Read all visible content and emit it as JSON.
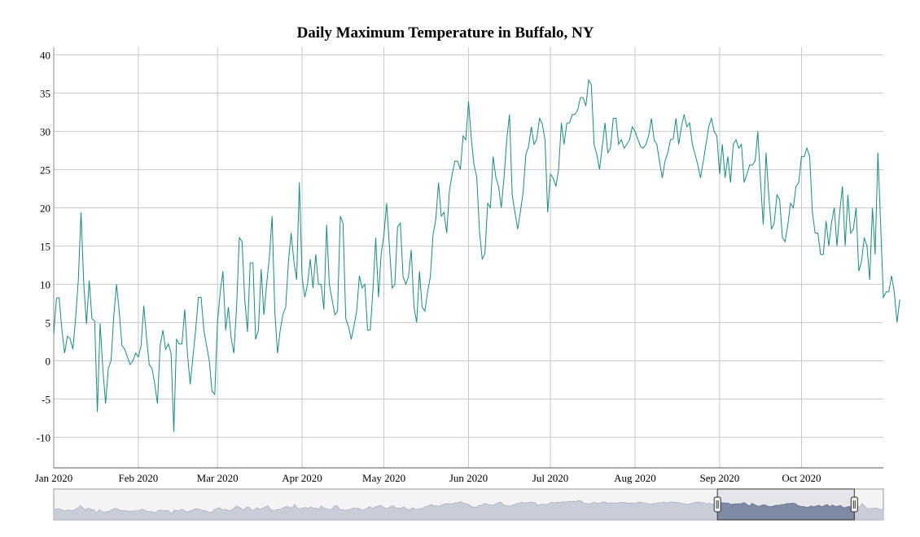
{
  "chart_data": {
    "type": "line",
    "title": "Daily Maximum Temperature in Buffalo, NY",
    "xlabel": "",
    "ylabel": "",
    "ylim": [
      -14,
      41
    ],
    "y_ticks": [
      -10,
      -5,
      0,
      5,
      10,
      15,
      20,
      25,
      30,
      35,
      40
    ],
    "x_ticks": [
      {
        "label": "Jan 2020",
        "day": 0
      },
      {
        "label": "Feb 2020",
        "day": 31
      },
      {
        "label": "Mar 2020",
        "day": 60
      },
      {
        "label": "Apr 2020",
        "day": 91
      },
      {
        "label": "May 2020",
        "day": 121
      },
      {
        "label": "Jun 2020",
        "day": 152
      },
      {
        "label": "Jul 2020",
        "day": 182
      },
      {
        "label": "Aug 2020",
        "day": 213
      },
      {
        "label": "Sep 2020",
        "day": 244
      },
      {
        "label": "Oct 2020",
        "day": 274
      }
    ],
    "x_domain_days": [
      0,
      304
    ],
    "grid": true,
    "legend": "none",
    "line_color": "#1a8a83",
    "series": [
      {
        "values": [
          3.5,
          8.2,
          8.2,
          4.0,
          1.0,
          3.2,
          2.9,
          1.5,
          5.5,
          10.5,
          19.4,
          10.0,
          4.8,
          10.5,
          5.5,
          5.2,
          -6.7,
          4.9,
          -1.0,
          -5.6,
          -1.0,
          0.0,
          5.8,
          10.0,
          6.5,
          2.0,
          1.5,
          0.5,
          -0.5,
          0.0,
          1.0,
          0.5,
          2.0,
          7.2,
          3.0,
          -0.5,
          -1.0,
          -3.0,
          -5.6,
          2.0,
          4.0,
          1.5,
          2.2,
          1.0,
          -9.3,
          2.8,
          2.2,
          2.2,
          6.7,
          1.0,
          -3.1,
          0.5,
          4.0,
          8.3,
          8.3,
          4.0,
          2.0,
          0.0,
          -4.0,
          -4.4,
          5.0,
          9.0,
          11.7,
          4.0,
          7.0,
          3.0,
          1.0,
          7.0,
          16.1,
          15.6,
          8.0,
          3.8,
          12.8,
          12.8,
          2.8,
          4.0,
          12.0,
          6.0,
          10.0,
          13.5,
          18.9,
          6.5,
          1.0,
          4.0,
          6.1,
          7.0,
          13.0,
          16.7,
          13.0,
          10.6,
          23.3,
          11.0,
          8.3,
          10.0,
          13.3,
          9.5,
          13.9,
          10.0,
          10.0,
          6.7,
          17.8,
          10.0,
          8.0,
          6.0,
          6.5,
          18.9,
          18.0,
          5.5,
          4.5,
          2.8,
          4.5,
          6.5,
          11.1,
          9.5,
          10.0,
          4.0,
          4.0,
          9.5,
          16.1,
          8.3,
          14.0,
          16.5,
          20.6,
          15.0,
          9.5,
          10.0,
          17.5,
          18.0,
          11.0,
          10.0,
          11.0,
          14.5,
          7.0,
          5.0,
          11.7,
          7.0,
          6.5,
          9.0,
          11.0,
          16.5,
          18.5,
          23.3,
          18.9,
          19.4,
          16.7,
          22.2,
          24.4,
          26.1,
          26.1,
          25.0,
          29.4,
          28.9,
          33.9,
          29.0,
          25.6,
          24.0,
          17.0,
          13.3,
          14.0,
          20.6,
          20.0,
          26.7,
          24.0,
          22.8,
          20.0,
          24.0,
          28.9,
          32.2,
          21.7,
          19.4,
          17.2,
          19.5,
          22.0,
          27.0,
          28.0,
          30.6,
          28.3,
          29.0,
          31.7,
          31.0,
          28.9,
          19.4,
          24.4,
          23.9,
          22.8,
          25.0,
          31.1,
          28.3,
          31.1,
          31.1,
          32.2,
          32.2,
          32.8,
          34.4,
          34.4,
          33.3,
          36.7,
          36.1,
          28.3,
          27.0,
          25.0,
          28.0,
          31.1,
          27.2,
          27.8,
          31.7,
          31.7,
          28.3,
          28.9,
          27.8,
          28.3,
          28.9,
          30.6,
          30.0,
          29.0,
          28.0,
          27.8,
          28.3,
          29.4,
          31.7,
          28.9,
          28.3,
          26.0,
          23.9,
          26.1,
          27.2,
          28.9,
          29.0,
          31.7,
          28.3,
          30.6,
          32.2,
          30.6,
          31.1,
          28.3,
          27.0,
          25.6,
          23.9,
          26.1,
          28.3,
          30.6,
          31.7,
          30.0,
          29.4,
          24.4,
          28.3,
          23.9,
          26.7,
          23.3,
          28.3,
          28.9,
          27.8,
          28.3,
          23.3,
          24.4,
          25.6,
          25.6,
          26.1,
          30.0,
          23.3,
          17.8,
          27.2,
          21.7,
          17.2,
          18.0,
          21.7,
          21.1,
          16.1,
          15.6,
          17.8,
          20.6,
          20.0,
          22.8,
          23.3,
          26.7,
          26.7,
          27.8,
          26.7,
          19.4,
          16.7,
          16.7,
          13.9,
          13.9,
          18.3,
          15.0,
          18.0,
          20.0,
          15.0,
          19.4,
          22.8,
          15.0,
          21.7,
          16.7,
          17.2,
          20.0,
          11.7,
          13.0,
          16.1,
          15.0,
          10.6,
          20.0,
          13.9,
          27.2,
          18.0,
          8.3,
          9.0,
          9.0,
          11.1,
          9.0,
          5.0,
          8.0
        ]
      }
    ],
    "navigator": {
      "selection_start_fraction": 0.8,
      "selection_end_fraction": 0.965
    }
  }
}
